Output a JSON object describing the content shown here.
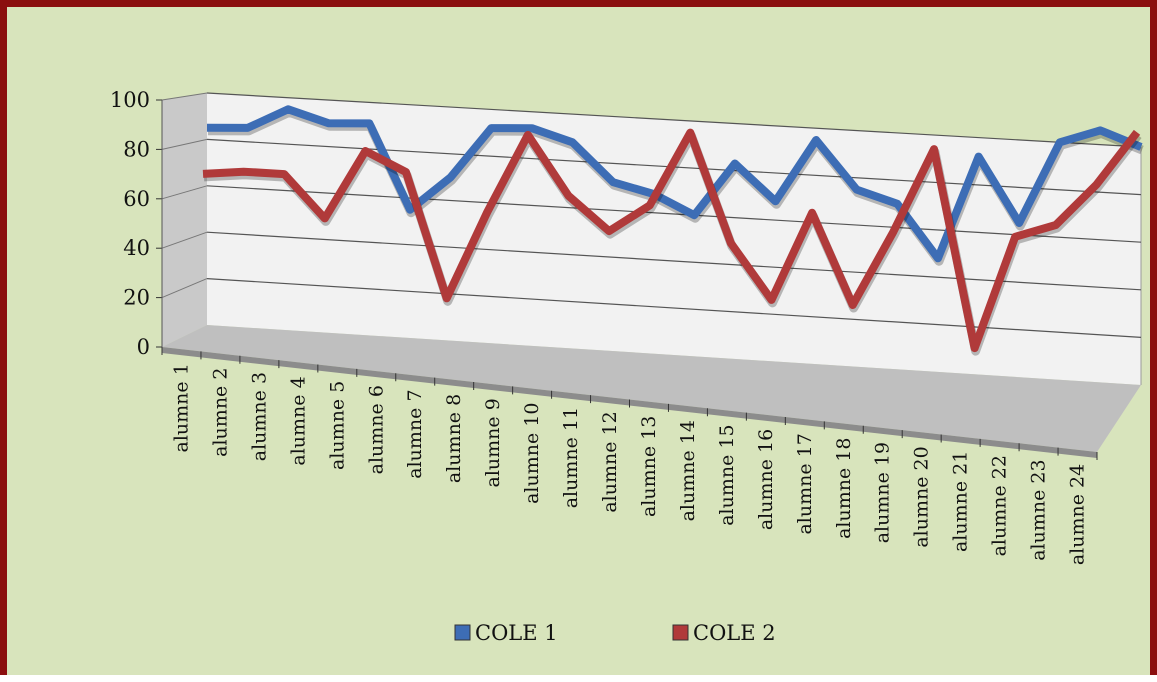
{
  "chart_data": {
    "type": "line",
    "title": "",
    "xlabel": "",
    "ylabel": "",
    "ylim": [
      0,
      100
    ],
    "yticks": [
      0,
      20,
      40,
      60,
      80,
      100
    ],
    "grid": true,
    "three_d": true,
    "legend_position": "bottom",
    "categories": [
      "alumne 1",
      "alumne 2",
      "alumne 3",
      "alumne 4",
      "alumne 5",
      "alumne 6",
      "alumne 7",
      "alumne 8",
      "alumne 9",
      "alumne 10",
      "alumne 11",
      "alumne 12",
      "alumne 13",
      "alumne 14",
      "alumne 15",
      "alumne 16",
      "alumne 17",
      "alumne 18",
      "alumne 19",
      "alumne 20",
      "alumne 21",
      "alumne 22",
      "alumne 23",
      "alumne 24"
    ],
    "series": [
      {
        "name": "COLE 1",
        "color": "#3d6db5",
        "values": [
          85,
          86,
          95,
          90,
          91,
          55,
          70,
          92,
          93,
          88,
          72,
          68,
          60,
          83,
          68,
          95,
          75,
          70,
          48,
          92,
          65,
          100,
          106,
          100
        ]
      },
      {
        "name": "COLE 2",
        "color": "#b03a3a",
        "values": [
          66,
          68,
          68,
          50,
          80,
          72,
          19,
          57,
          91,
          66,
          52,
          64,
          96,
          50,
          27,
          65,
          27,
          59,
          95,
          12,
          60,
          66,
          84,
          107
        ]
      }
    ]
  },
  "colors": {
    "background": "#d8e4bc",
    "border": "#8b0f0f",
    "wall": "#f2f2f2",
    "floor": "#bfbfbf"
  }
}
